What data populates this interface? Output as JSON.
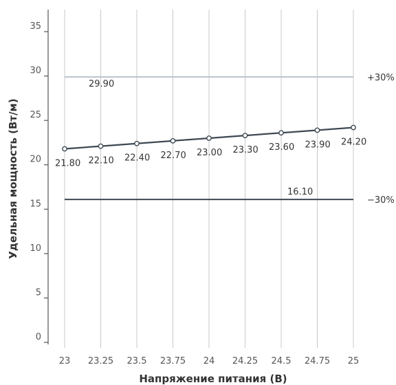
{
  "chart_data": {
    "type": "line",
    "title": "",
    "xlabel": "Напряжение питания (В)",
    "ylabel": "Удельная мощность (Вт/м)",
    "xlim": [
      23,
      25
    ],
    "ylim": [
      0,
      35
    ],
    "x_ticks": [
      "23",
      "23.25",
      "23.5",
      "23.75",
      "24",
      "24.25",
      "24.5",
      "24.75",
      "25"
    ],
    "y_ticks": [
      "0",
      "5",
      "10",
      "15",
      "20",
      "25",
      "30",
      "35"
    ],
    "grid": "vertical",
    "series": [
      {
        "x": [
          23,
          23.25,
          23.5,
          23.75,
          24,
          24.25,
          24.5,
          24.75,
          25
        ],
        "values": [
          21.8,
          22.1,
          22.4,
          22.7,
          23.0,
          23.3,
          23.6,
          23.9,
          24.2
        ],
        "labels": [
          "21.80",
          "22.10",
          "22.40",
          "22.70",
          "23.00",
          "23.30",
          "23.60",
          "23.90",
          "24.20"
        ],
        "color": "#3d4852",
        "marker": "open-circle"
      }
    ],
    "reference_lines": [
      {
        "name": "+30%",
        "y": 29.9,
        "value_label": "29.90",
        "color": "#b9c3cc"
      },
      {
        "name": "−30%",
        "y": 16.1,
        "value_label": "16.10",
        "color": "#3d4852"
      }
    ]
  }
}
